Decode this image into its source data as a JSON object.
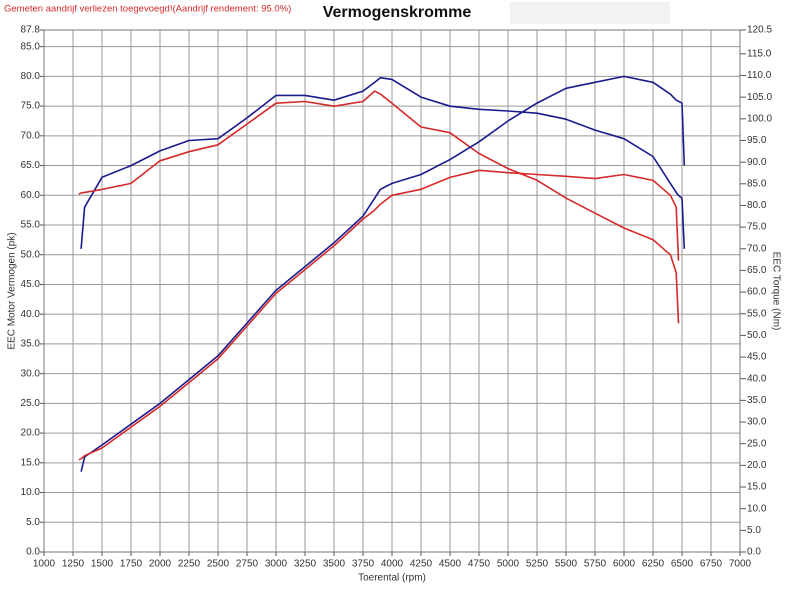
{
  "chart_data": {
    "type": "line",
    "title": "Vermogenskromme",
    "note": "Gemeten aandrijf verliezen toegevoegd!(Aandrijf rendement: 95.0%)",
    "x_label": "Toerental (rpm)",
    "y_label": "EEC Motor Vermogen (pk)",
    "y2_label": "EEC Torque (Nm)",
    "grid": true,
    "x": [
      1300,
      1320,
      1350,
      1500,
      1750,
      2000,
      2250,
      2500,
      2750,
      3000,
      3250,
      3500,
      3750,
      3850,
      3900,
      4000,
      4250,
      4500,
      4750,
      5000,
      5250,
      5500,
      5750,
      6000,
      6250,
      6400,
      6450,
      6470,
      6500,
      6520
    ],
    "series": [
      {
        "color": "#1a1a8c",
        "axis": "y2",
        "values": [
          null,
          70.0,
          79.6,
          86.5,
          89.2,
          92.6,
          95.0,
          95.4,
          100.2,
          105.4,
          105.4,
          104.3,
          106.4,
          108.4,
          109.5,
          109.1,
          105.0,
          102.9,
          102.2,
          101.8,
          101.3,
          99.9,
          97.4,
          95.4,
          91.3,
          85.1,
          83.0,
          82.3,
          81.7,
          70.0
        ]
      },
      {
        "color": "#d42a2a",
        "axis": "y2",
        "values": [
          82.6,
          82.9,
          83.0,
          83.7,
          85.1,
          90.3,
          92.4,
          94.0,
          98.8,
          103.6,
          104.0,
          102.9,
          104.0,
          106.4,
          105.7,
          103.6,
          98.1,
          96.8,
          92.0,
          88.5,
          85.8,
          81.7,
          78.2,
          74.8,
          72.1,
          68.6,
          64.5,
          52.8,
          null,
          null
        ]
      },
      {
        "color": "#1a1a8c",
        "values": [
          null,
          13.5,
          16,
          18,
          21.5,
          25,
          29,
          33,
          38.5,
          44,
          48,
          52,
          56.5,
          59.5,
          61,
          62,
          63.5,
          66,
          69,
          72.5,
          75.5,
          78,
          79,
          80,
          79,
          77,
          76,
          75.8,
          75.5,
          65
        ]
      },
      {
        "color": "#d42a2a",
        "values": [
          15.5,
          15.7,
          16.2,
          17.5,
          21,
          24.5,
          28.5,
          32.5,
          38,
          43.5,
          47.5,
          51.5,
          56,
          57.5,
          58.5,
          60,
          61,
          63,
          64.2,
          63.8,
          63.5,
          63.2,
          62.8,
          63.5,
          62.5,
          60,
          58,
          49,
          null,
          null
        ]
      }
    ],
    "xlim": [
      1000,
      7000
    ],
    "xticks": [
      1000,
      1250,
      1500,
      1750,
      2000,
      2250,
      2500,
      2750,
      3000,
      3250,
      3500,
      3750,
      4000,
      4250,
      4500,
      4750,
      5000,
      5250,
      5500,
      5750,
      6000,
      6250,
      6500,
      6750,
      7000
    ],
    "ylim": [
      0,
      87.8
    ],
    "yticks": [
      {
        "value": 0,
        "label": "0.0"
      },
      {
        "value": 5,
        "label": "5.0"
      },
      {
        "value": 10,
        "label": "10.0"
      },
      {
        "value": 15,
        "label": "15.0"
      },
      {
        "value": 20,
        "label": "20.0"
      },
      {
        "value": 25,
        "label": "25.0"
      },
      {
        "value": 30,
        "label": "30.0"
      },
      {
        "value": 35,
        "label": "35.0"
      },
      {
        "value": 40,
        "label": "40.0"
      },
      {
        "value": 45,
        "label": "45.0"
      },
      {
        "value": 50,
        "label": "50.0"
      },
      {
        "value": 55,
        "label": "55.0"
      },
      {
        "value": 60,
        "label": "60.0"
      },
      {
        "value": 65,
        "label": "65.0"
      },
      {
        "value": 70,
        "label": "70.0"
      },
      {
        "value": 75,
        "label": "75.0"
      },
      {
        "value": 80,
        "label": "80.0"
      },
      {
        "value": 85,
        "label": "85.0"
      },
      87.8
    ],
    "y2lim": [
      0,
      120.5
    ],
    "y2ticks": [
      {
        "value": 0,
        "label": "0.0"
      },
      {
        "value": 5,
        "label": "5.0"
      },
      {
        "value": 10,
        "label": "10.0"
      },
      {
        "value": 15,
        "label": "15.0"
      },
      {
        "value": 20,
        "label": "20.0"
      },
      {
        "value": 25,
        "label": "25.0"
      },
      {
        "value": 30,
        "label": "30.0"
      },
      {
        "value": 35,
        "label": "35.0"
      },
      {
        "value": 40,
        "label": "40.0"
      },
      {
        "value": 45,
        "label": "45.0"
      },
      {
        "value": 50,
        "label": "50.0"
      },
      {
        "value": 55,
        "label": "55.0"
      },
      {
        "value": 60,
        "label": "60.0"
      },
      {
        "value": 65,
        "label": "65.0"
      },
      {
        "value": 70,
        "label": "70.0"
      },
      {
        "value": 75,
        "label": "75.0"
      },
      {
        "value": 80,
        "label": "80.0"
      },
      {
        "value": 85,
        "label": "85.0"
      },
      {
        "value": 90,
        "label": "90.0"
      },
      {
        "value": 95,
        "label": "95.0"
      },
      {
        "value": 100,
        "label": "100.0"
      },
      {
        "value": 105,
        "label": "105.0"
      },
      {
        "value": 110,
        "label": "110.0"
      },
      {
        "value": 115,
        "label": "115.0"
      },
      120.5
    ]
  }
}
